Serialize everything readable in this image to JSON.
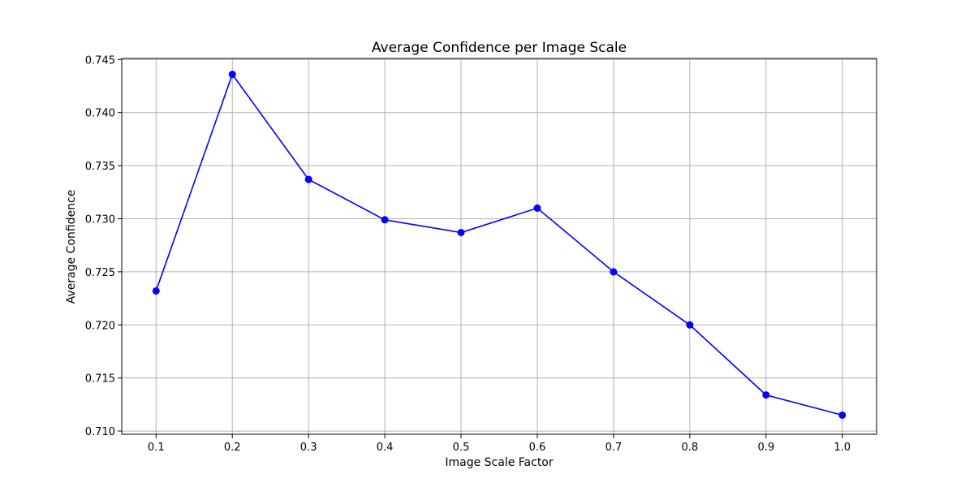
{
  "chart_data": {
    "type": "line",
    "title": "Average Confidence per Image Scale",
    "xlabel": "Image Scale Factor",
    "ylabel": "Average Confidence",
    "x": [
      0.1,
      0.2,
      0.3,
      0.4,
      0.5,
      0.6,
      0.7,
      0.8,
      0.9,
      1.0
    ],
    "x_tick_labels": [
      "0.1",
      "0.2",
      "0.3",
      "0.4",
      "0.5",
      "0.6",
      "0.7",
      "0.8",
      "0.9",
      "1.0"
    ],
    "y_ticks": [
      0.71,
      0.715,
      0.72,
      0.725,
      0.73,
      0.735,
      0.74,
      0.745
    ],
    "y_tick_labels": [
      "0.710",
      "0.715",
      "0.720",
      "0.725",
      "0.730",
      "0.735",
      "0.740",
      "0.745"
    ],
    "series": [
      {
        "color": "#0000ff",
        "marker": "circle",
        "values": [
          0.7232,
          0.7436,
          0.7337,
          0.7299,
          0.7287,
          0.731,
          0.725,
          0.72,
          0.7134,
          0.7115
        ]
      }
    ],
    "xlim": [
      0.055,
      1.045
    ],
    "ylim": [
      0.7097,
      0.7451
    ],
    "grid": true,
    "legend": "none"
  }
}
